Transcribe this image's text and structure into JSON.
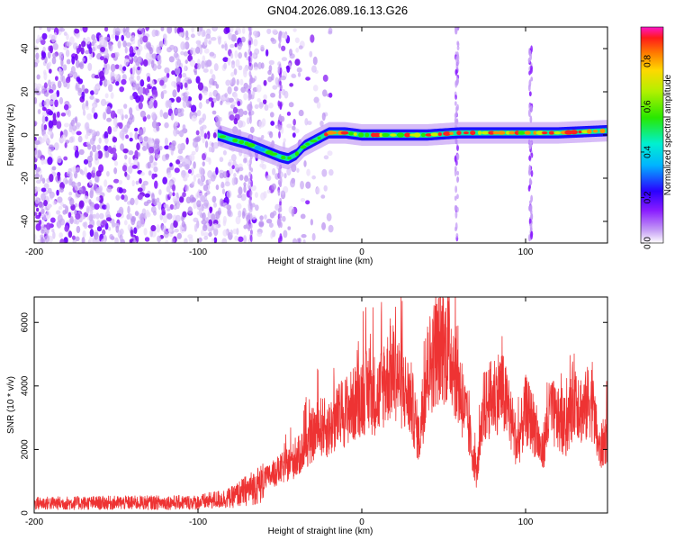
{
  "title": "GN04.2026.089.16.13.G26",
  "colors": {
    "snr_line": "#ee3333",
    "spectrogram_low": "#c9a5f5",
    "spectrogram_mid": "#8a1dff",
    "background": "#ffffff"
  },
  "chart_data": [
    {
      "type": "heatmap",
      "name": "spectrogram",
      "xlabel": "Height of straight line (km)",
      "ylabel": "Frequency (Hz)",
      "xlim": [
        -200,
        150
      ],
      "ylim": [
        -50,
        50
      ],
      "xticks": [
        -200,
        -100,
        0,
        100
      ],
      "yticks": [
        -40,
        -20,
        0,
        20,
        40
      ],
      "colorbar": {
        "label": "Normalized spectral amplitude",
        "range": [
          0,
          0.95
        ],
        "ticks": [
          0.0,
          0.2,
          0.4,
          0.6,
          0.8
        ]
      },
      "ridge": {
        "x": [
          -88,
          -80,
          -70,
          -60,
          -50,
          -45,
          -40,
          -35,
          -30,
          -25,
          -20,
          -10,
          0,
          20,
          40,
          60,
          80,
          100,
          120,
          150
        ],
        "freq": [
          0,
          -2,
          -4,
          -7,
          -10,
          -11,
          -9,
          -5,
          -3,
          -1,
          1,
          1,
          0,
          0,
          0,
          1,
          1,
          1,
          1,
          2
        ]
      }
    },
    {
      "type": "line",
      "name": "snr",
      "xlabel": "Height of straight line (km)",
      "ylabel": "SNR (10 * v/v)",
      "xlim": [
        -200,
        150
      ],
      "ylim": [
        0,
        6800
      ],
      "xticks": [
        -200,
        -100,
        0,
        100
      ],
      "yticks": [
        0,
        2000,
        4000,
        6000
      ],
      "envelope": {
        "x": [
          -200,
          -150,
          -100,
          -80,
          -70,
          -60,
          -50,
          -40,
          -35,
          -30,
          -25,
          -20,
          -15,
          -10,
          -5,
          0,
          5,
          10,
          15,
          20,
          25,
          30,
          35,
          40,
          45,
          50,
          55,
          60,
          65,
          70,
          75,
          80,
          85,
          90,
          95,
          100,
          105,
          110,
          115,
          120,
          125,
          130,
          135,
          140,
          145,
          150
        ],
        "y": [
          380,
          400,
          420,
          600,
          900,
          1200,
          1600,
          2000,
          2400,
          2900,
          3200,
          3100,
          3500,
          3800,
          4000,
          4400,
          4500,
          4300,
          5000,
          5300,
          4600,
          4200,
          2700,
          5300,
          6000,
          6200,
          5900,
          4500,
          3200,
          1400,
          3900,
          4300,
          4600,
          3700,
          2500,
          3800,
          3300,
          2200,
          3800,
          3400,
          3100,
          4500,
          3700,
          4300,
          2300,
          2900
        ]
      }
    }
  ]
}
